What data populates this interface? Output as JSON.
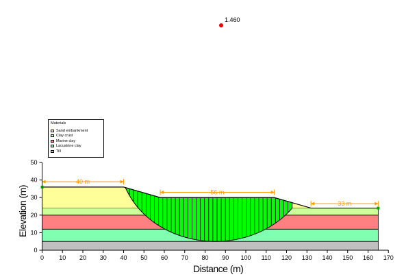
{
  "factor_of_safety": "1.460",
  "legend": {
    "title": "Materials",
    "items": [
      {
        "label": "Sand embankment",
        "color": "#ffff99"
      },
      {
        "label": "Clay crust",
        "color": "#ccff99"
      },
      {
        "label": "Marine clay",
        "color": "#ff8080"
      },
      {
        "label": "Lacustrine clay",
        "color": "#80ffb0"
      },
      {
        "label": "Till",
        "color": "#c0c0c0"
      }
    ]
  },
  "axes": {
    "xlabel": "Distance (m)",
    "ylabel": "Elevation (m)",
    "xlim": [
      0,
      170
    ],
    "ylim": [
      0,
      50
    ],
    "xticks": [
      "0",
      "10",
      "20",
      "30",
      "40",
      "50",
      "60",
      "70",
      "80",
      "90",
      "100",
      "110",
      "120",
      "130",
      "140",
      "150",
      "160",
      "170"
    ],
    "yticks": [
      "0",
      "10",
      "20",
      "30",
      "40",
      "50"
    ]
  },
  "dimensions": [
    {
      "label": "40 m",
      "from": 0,
      "to": 40,
      "elevation": 39
    },
    {
      "label": "56 m",
      "from": 58,
      "to": 114,
      "elevation": 33
    },
    {
      "label": "33 m",
      "from": 132,
      "to": 165,
      "elevation": 26.5
    }
  ],
  "chart_data": {
    "type": "diagram",
    "ground_surface": [
      [
        0,
        36
      ],
      [
        40,
        36
      ],
      [
        58,
        30
      ],
      [
        114,
        30
      ],
      [
        132,
        24
      ],
      [
        165,
        24
      ]
    ],
    "layer_boundaries": {
      "till_top": 5,
      "lacustrine_top": 12,
      "marine_top": 20,
      "crust_top": 24
    },
    "slip_circle": {
      "center": [
        85,
        52
      ],
      "radius": 47
    },
    "colors": {
      "slice": "#00ff00",
      "till": "#c0c0c0",
      "lacustrine": "#80ffb0",
      "marine": "#ff8080",
      "crust": "#ccff99",
      "sand": "#ffff99",
      "dimension": "#ff9900",
      "fs_point": "#ee0000"
    }
  }
}
